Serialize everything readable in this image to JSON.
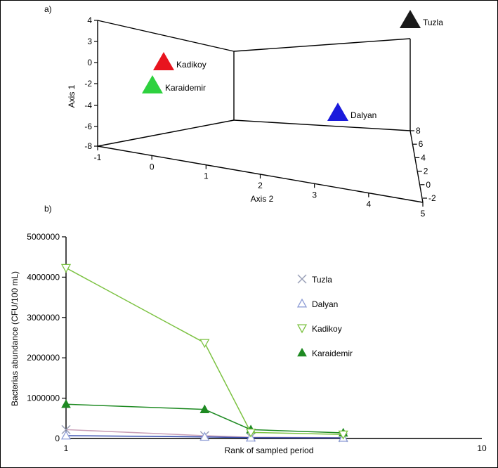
{
  "chart_data": [
    {
      "panel_label": "a)",
      "type": "scatter",
      "projection": "3d",
      "xlabel": "Axis 2",
      "ylabel": "Axis 1",
      "x_ticks": [
        "-1",
        "0",
        "1",
        "2",
        "3",
        "4",
        "5"
      ],
      "y_ticks": [
        "4",
        "3",
        "0",
        "-2",
        "-4",
        "-6",
        "-8"
      ],
      "z_ticks": [
        "8",
        "6",
        "4",
        "2",
        "0",
        "-2"
      ],
      "points": [
        {
          "name": "Tuzla",
          "color": "#1a1a1a"
        },
        {
          "name": "Kadikoy",
          "color": "#e8141e"
        },
        {
          "name": "Karaidemir",
          "color": "#2ed13f"
        },
        {
          "name": "Dalyan",
          "color": "#1a1adc"
        }
      ]
    },
    {
      "panel_label": "b)",
      "type": "line",
      "xlabel": "Rank of sampled period",
      "ylabel": "Bacterias abundance (CFU/100 mL)",
      "xlim": [
        1,
        10
      ],
      "ylim": [
        0,
        5000000
      ],
      "x_ticks": [
        "1",
        "10"
      ],
      "y_ticks": [
        "0",
        "1000000",
        "2000000",
        "3000000",
        "4000000",
        "5000000"
      ],
      "x": [
        1,
        4,
        5,
        7
      ],
      "series": [
        {
          "name": "Tuzla",
          "marker": "x",
          "color": "#9aa0b8",
          "line_color": "#c9a0b8",
          "values": [
            220000,
            70000,
            30000,
            20000
          ]
        },
        {
          "name": "Dalyan",
          "marker": "triangle-up-open",
          "color": "#8f9ed6",
          "line_color": "#3a4fb0",
          "values": [
            70000,
            40000,
            20000,
            15000
          ]
        },
        {
          "name": "Kadikoy",
          "marker": "triangle-down-open",
          "color": "#7cc242",
          "line_color": "#7cc242",
          "values": [
            4230000,
            2370000,
            150000,
            100000
          ]
        },
        {
          "name": "Karaidemir",
          "marker": "triangle-up-filled",
          "color": "#1e8a22",
          "line_color": "#1e8a22",
          "values": [
            850000,
            720000,
            220000,
            140000
          ]
        }
      ]
    }
  ]
}
